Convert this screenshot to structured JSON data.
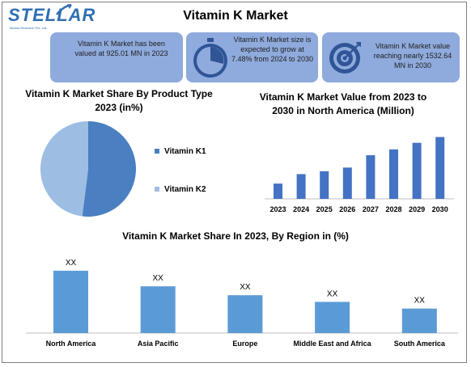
{
  "logo": {
    "name": "STELLAR",
    "subtitle": "Market Research Pvt. Ltd."
  },
  "title": "Vitamin K Market",
  "kpis": [
    {
      "text": "Vitamin K Market has been valued at 925.01 MN in 2023",
      "icon": "none"
    },
    {
      "text": "Vitamin K Market size is expected to grow at 7.48% from 2024 to 2030",
      "icon": "stopwatch-icon"
    },
    {
      "text": "Vitamin K Market value reaching nearly 1532.64 MN in 2030",
      "icon": "target-icon"
    }
  ],
  "colors": {
    "kpi_bg": "#8faadc",
    "k1": "#4a7fc1",
    "k2": "#9dbde3",
    "bar": "#4472c4",
    "region_bar": "#5b9bd5"
  },
  "chart_data": [
    {
      "type": "pie",
      "title": "Vitamin K Market Share By Product Type 2023 (in%)",
      "labels": [
        "Vitamin K1",
        "Vitamin K2"
      ],
      "values": [
        52,
        48
      ],
      "legend": "right"
    },
    {
      "type": "bar",
      "title": "Vitamin K Market Value from 2023 to 2030 in North America (Million)",
      "categories": [
        "2023",
        "2024",
        "2025",
        "2026",
        "2027",
        "2028",
        "2029",
        "2030"
      ],
      "values": [
        21,
        34,
        38,
        43,
        60,
        68,
        77,
        85
      ],
      "ylim": [
        0,
        100
      ]
    },
    {
      "type": "bar",
      "title": "Vitamin K Market Share In 2023, By Region in (%)",
      "categories": [
        "North America",
        "Asia Pacific",
        "Europe",
        "Middle East and Africa",
        "South America"
      ],
      "values": [
        28,
        21,
        17,
        14,
        11
      ],
      "data_labels": [
        "XX",
        "XX",
        "XX",
        "XX",
        "XX"
      ],
      "ylim": [
        0,
        30
      ]
    }
  ]
}
